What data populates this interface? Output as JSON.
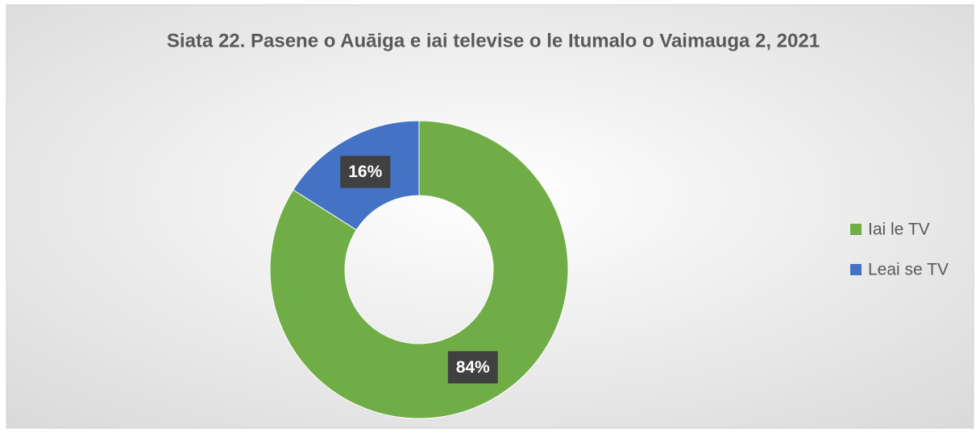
{
  "chart_data": {
    "type": "donut",
    "title": "Siata 22. Pasene o Auāiga e iai televise o le Itumalo o Vaimauga 2, 2021",
    "categories": [
      "Iai le TV",
      "Leai se TV"
    ],
    "values": [
      84,
      16
    ],
    "value_labels": [
      "84%",
      "16%"
    ],
    "colors": [
      "#70ad47",
      "#4472c4"
    ],
    "legend": "right"
  }
}
